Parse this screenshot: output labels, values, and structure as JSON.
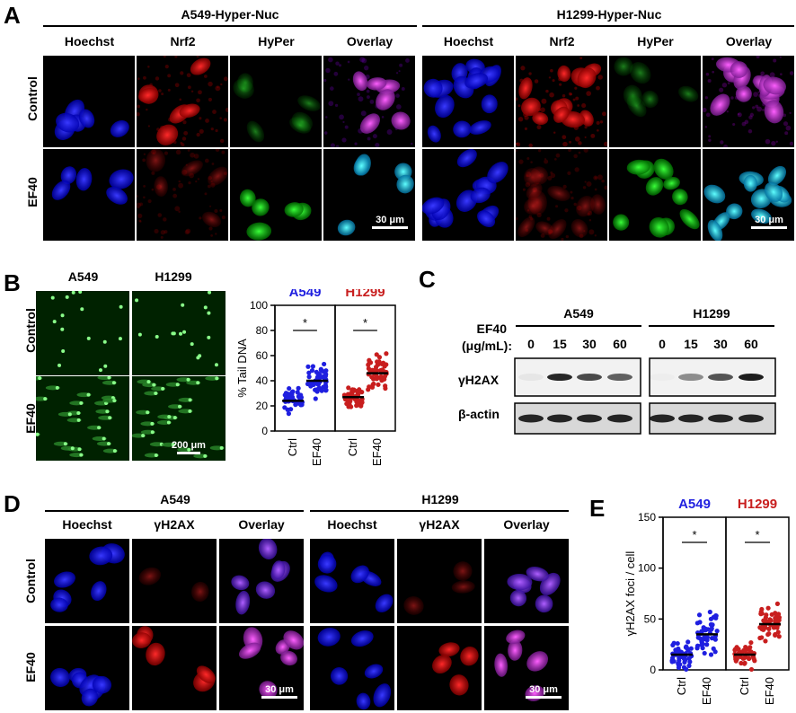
{
  "panelA": {
    "label": "A",
    "groups": [
      {
        "title": "A549-Hyper-Nuc",
        "columns": [
          "Hoechst",
          "Nrf2",
          "HyPer",
          "Overlay"
        ]
      },
      {
        "title": "H1299-Hyper-Nuc",
        "columns": [
          "Hoechst",
          "Nrf2",
          "HyPer",
          "Overlay"
        ]
      }
    ],
    "rows": [
      "Control",
      "EF40"
    ],
    "scalebar": "30 μm"
  },
  "panelB": {
    "label": "B",
    "columns": [
      "A549",
      "H1299"
    ],
    "rows": [
      "Control",
      "EF40"
    ],
    "scalebar": "200 μm"
  },
  "panelC": {
    "label": "C",
    "treatment_label_line1": "EF40",
    "treatment_label_line2": "(μg/mL):",
    "groups": [
      "A549",
      "H1299"
    ],
    "doses": [
      "0",
      "15",
      "30",
      "60",
      "0",
      "15",
      "30",
      "60"
    ],
    "bands": [
      "γH2AX",
      "β-actin"
    ]
  },
  "panelD": {
    "label": "D",
    "groups": [
      {
        "title": "A549",
        "columns": [
          "Hoechst",
          "γH2AX",
          "Overlay"
        ]
      },
      {
        "title": "H1299",
        "columns": [
          "Hoechst",
          "γH2AX",
          "Overlay"
        ]
      }
    ],
    "rows": [
      "Control",
      "EF40"
    ],
    "scalebar": "30 μm"
  },
  "panelE": {
    "label": "E"
  },
  "chart_data": [
    {
      "type": "scatter",
      "panel": "B",
      "ylabel": "% Tail DNA",
      "ylim": [
        0,
        100
      ],
      "yticks": [
        0,
        20,
        40,
        60,
        80,
        100
      ],
      "groups": [
        {
          "name": "A549",
          "color": "#1f1fe0",
          "categories": [
            "Ctrl",
            "EF40"
          ],
          "medians": [
            24,
            40
          ],
          "significance": "*"
        },
        {
          "name": "H1299",
          "color": "#c81e1e",
          "categories": [
            "Ctrl",
            "EF40"
          ],
          "medians": [
            27,
            46
          ],
          "significance": "*"
        }
      ]
    },
    {
      "type": "scatter",
      "panel": "E",
      "ylabel": "γH2AX foci / cell",
      "ylim": [
        0,
        150
      ],
      "yticks": [
        0,
        50,
        100,
        150
      ],
      "groups": [
        {
          "name": "A549",
          "color": "#1f1fe0",
          "categories": [
            "Ctrl",
            "EF40"
          ],
          "medians": [
            15,
            35
          ],
          "significance": "*"
        },
        {
          "name": "H1299",
          "color": "#c81e1e",
          "categories": [
            "Ctrl",
            "EF40"
          ],
          "medians": [
            15,
            45
          ],
          "significance": "*"
        }
      ]
    }
  ]
}
